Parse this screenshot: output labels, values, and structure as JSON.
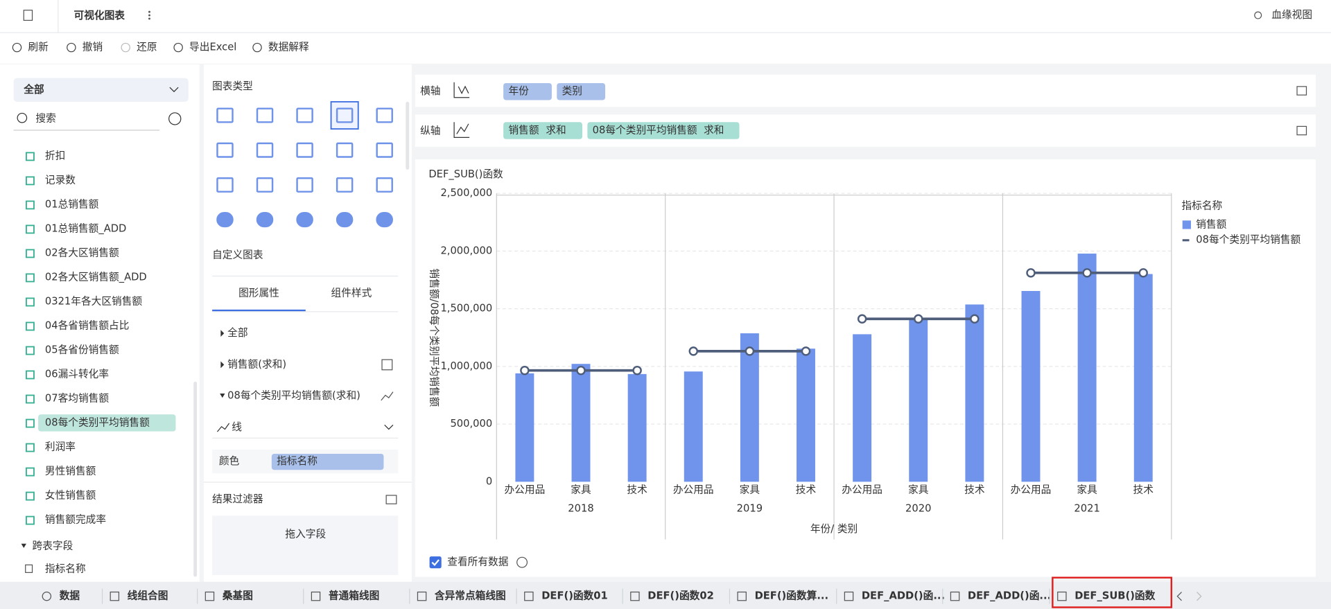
{
  "header": {
    "title": "可视化图表",
    "lineage": "血缘视图"
  },
  "toolbar": [
    "刷新",
    "撤销",
    "还原",
    "导出Excel",
    "数据解释"
  ],
  "fields": {
    "dropdown": "全部",
    "search_placeholder": "搜索",
    "items": [
      "折扣",
      "记录数",
      "01总销售额",
      "01总销售额_ADD",
      "02各大区销售额",
      "02各大区销售额_ADD",
      "0321年各大区销售额",
      "04各省销售额占比",
      "05各省份销售额",
      "06漏斗转化率",
      "07客均销售额",
      "08每个类别平均销售额",
      "利润率",
      "男性销售额",
      "女性销售额",
      "销售额完成率"
    ],
    "cross_table": "跨表字段",
    "cross_items": [
      "指标名称"
    ]
  },
  "chart_types": {
    "title": "图表类型",
    "custom": "自定义图表"
  },
  "properties": {
    "tabs": [
      "图形属性",
      "组件样式"
    ],
    "items": [
      "全部",
      "销售额(求和)",
      "08每个类别平均销售额(求和)"
    ],
    "mark_type": "线",
    "color_label": "颜色",
    "color_field": "指标名称"
  },
  "filter": {
    "title": "结果过滤器",
    "placeholder": "拖入字段"
  },
  "axes": {
    "x_label": "横轴",
    "x_fields": [
      "年份",
      "类别"
    ],
    "y_label": "纵轴",
    "y_fields": [
      {
        "name": "销售额",
        "agg": "求和"
      },
      {
        "name": "08每个类别平均销售额",
        "agg": "求和"
      }
    ]
  },
  "chart_data": {
    "type": "bar_line",
    "title": "DEF_SUB()函数",
    "groups": [
      "2018",
      "2019",
      "2020",
      "2021"
    ],
    "categories": [
      "办公用品",
      "家具",
      "技术",
      "办公用品",
      "家具",
      "技术",
      "办公用品",
      "家具",
      "技术",
      "办公用品",
      "家具",
      "技术"
    ],
    "x_label": "年份/ 类别",
    "y_label": "销售额/08每个类别平均销售额",
    "legend_title": "指标名称",
    "series": [
      {
        "name": "销售额",
        "type": "bar",
        "color": "#7094eb",
        "values": [
          940000,
          1022000,
          934000,
          956000,
          1287000,
          1154000,
          1279000,
          1419000,
          1537000,
          1654000,
          1978000,
          1801000
        ]
      },
      {
        "name": "08每个类别平均销售额",
        "type": "line",
        "color": "#4e5d7a",
        "values": [
          965000,
          965000,
          965000,
          1132000,
          1132000,
          1132000,
          1412000,
          1412000,
          1412000,
          1811000,
          1811000,
          1811000
        ]
      }
    ],
    "ylim": [
      0,
      2500000
    ],
    "yticks": [
      0,
      {
        "value": 500000,
        "label": "500,000"
      },
      {
        "value": 1000000,
        "label": "1,000,000"
      },
      {
        "value": 1500000,
        "label": "1,500,000"
      },
      {
        "value": 2000000,
        "label": "2,000,000"
      },
      {
        "value": 2500000,
        "label": "2,500,000"
      }
    ],
    "grid": true
  },
  "view_all": "查看所有数据",
  "tabs": [
    "数据",
    "线组合图",
    "桑基图",
    "普通箱线图",
    "含异常点箱线图",
    "DEF()函数01",
    "DEF()函数02",
    "DEF()函数算...",
    "DEF_ADD()函...",
    "DEF_ADD()函...",
    "DEF_SUB()函数"
  ]
}
